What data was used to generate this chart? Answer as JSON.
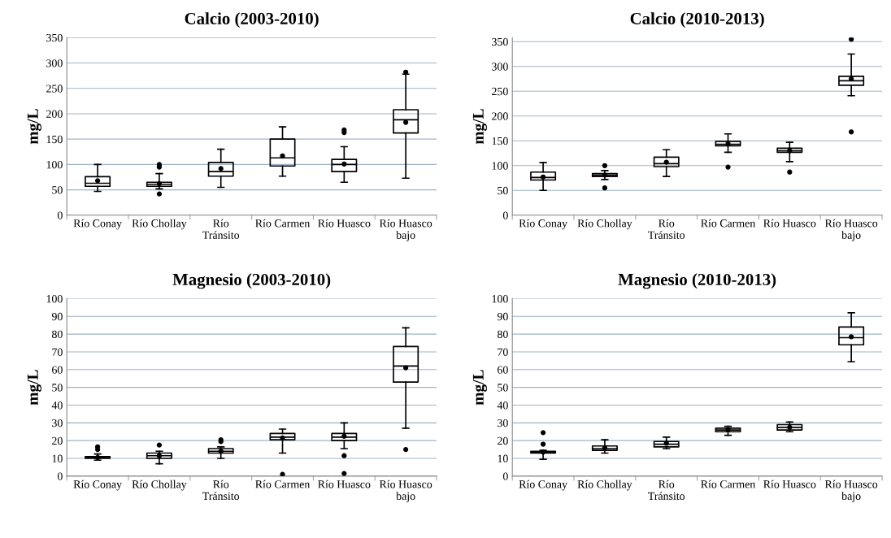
{
  "chart_data": [
    {
      "type": "box",
      "title": "Calcio (2003-2010)",
      "ylabel": "mg/L",
      "categories": [
        "Río Conay",
        "Río Chollay",
        "Río\nTránsito",
        "Río Carmen",
        "Río Huasco",
        "Río Huasco\nbajo"
      ],
      "ylim": [
        0,
        350
      ],
      "yticks": [
        0,
        50,
        100,
        150,
        200,
        250,
        300,
        350
      ],
      "grid": "y",
      "boxes": [
        {
          "low": 47,
          "q1": 57,
          "median": 63,
          "q3": 76,
          "high": 100,
          "mean": 68
        },
        {
          "low": 52,
          "q1": 57,
          "median": 61,
          "q3": 65,
          "high": 82,
          "mean": 62,
          "outliers": [
            42,
            95,
            100
          ]
        },
        {
          "low": 55,
          "q1": 77,
          "median": 86,
          "q3": 104,
          "high": 130,
          "mean": 92
        },
        {
          "low": 77,
          "q1": 97,
          "median": 113,
          "q3": 150,
          "high": 174,
          "mean": 117
        },
        {
          "low": 65,
          "q1": 86,
          "median": 100,
          "q3": 110,
          "high": 135,
          "mean": 101,
          "outliers": [
            163,
            168
          ]
        },
        {
          "low": 73,
          "q1": 162,
          "median": 188,
          "q3": 208,
          "high": 278,
          "mean": 183,
          "outliers": [
            282
          ]
        }
      ]
    },
    {
      "type": "box",
      "title": "Calcio (2010-2013)",
      "ylabel": "mg/L",
      "categories": [
        "Río Conay",
        "Río Chollay",
        "Río\nTránsito",
        "Río Carmen",
        "Río Huasco",
        "Río Huasco\nbajo"
      ],
      "ylim": [
        0,
        358
      ],
      "yticks": [
        0,
        50,
        100,
        150,
        200,
        250,
        300,
        350
      ],
      "grid": "y",
      "boxes": [
        {
          "low": 50,
          "q1": 71,
          "median": 76,
          "q3": 87,
          "high": 106,
          "mean": 77
        },
        {
          "low": 72,
          "q1": 78,
          "median": 81,
          "q3": 84,
          "high": 90,
          "mean": 81,
          "outliers": [
            55,
            100
          ]
        },
        {
          "low": 78,
          "q1": 98,
          "median": 104,
          "q3": 117,
          "high": 132,
          "mean": 107
        },
        {
          "low": 127,
          "q1": 140,
          "median": 143,
          "q3": 149,
          "high": 164,
          "mean": 144,
          "outliers": [
            97
          ]
        },
        {
          "low": 108,
          "q1": 127,
          "median": 130,
          "q3": 135,
          "high": 147,
          "mean": 130,
          "outliers": [
            87
          ]
        },
        {
          "low": 241,
          "q1": 262,
          "median": 271,
          "q3": 280,
          "high": 325,
          "mean": 275,
          "outliers": [
            168,
            355
          ]
        }
      ]
    },
    {
      "type": "box",
      "title": "Magnesio (2003-2010)",
      "ylabel": "mg/L",
      "categories": [
        "Río Conay",
        "Río Chollay",
        "Río\nTránsito",
        "Río Carmen",
        "Río Huasco",
        "Río Huasco\nbajo"
      ],
      "ylim": [
        0,
        100
      ],
      "yticks": [
        0,
        10,
        20,
        30,
        40,
        50,
        60,
        70,
        80,
        90,
        100
      ],
      "grid": "y",
      "boxes": [
        {
          "low": 9,
          "q1": 10,
          "median": 10.5,
          "q3": 11,
          "high": 12.5,
          "mean": 10.5,
          "outliers": [
            15,
            16.5
          ]
        },
        {
          "low": 7,
          "q1": 10,
          "median": 11.5,
          "q3": 13,
          "high": 14,
          "mean": 11.5,
          "outliers": [
            17.5
          ]
        },
        {
          "low": 10,
          "q1": 13,
          "median": 14,
          "q3": 15.5,
          "high": 16.5,
          "mean": 14,
          "outliers": [
            19.5,
            20.5
          ]
        },
        {
          "low": 13,
          "q1": 20.5,
          "median": 22,
          "q3": 24,
          "high": 26.5,
          "mean": 21.5,
          "outliers": [
            1
          ]
        },
        {
          "low": 15.5,
          "q1": 20,
          "median": 22,
          "q3": 24,
          "high": 30,
          "mean": 22.5,
          "outliers": [
            1.5,
            11.5
          ]
        },
        {
          "low": 27,
          "q1": 53,
          "median": 62,
          "q3": 73,
          "high": 83.5,
          "mean": 61,
          "outliers": [
            15
          ]
        }
      ]
    },
    {
      "type": "box",
      "title": "Magnesio (2010-2013)",
      "ylabel": "mg/L",
      "categories": [
        "Río Conay",
        "Río Chollay",
        "Río\nTránsito",
        "Río Carmen",
        "Río Huasco",
        "Río Huasco\nbajo"
      ],
      "ylim": [
        0,
        100
      ],
      "yticks": [
        0,
        10,
        20,
        30,
        40,
        50,
        60,
        70,
        80,
        90,
        100
      ],
      "grid": "y",
      "boxes": [
        {
          "low": 9.5,
          "q1": 13,
          "median": 13.5,
          "q3": 14,
          "high": 14.5,
          "mean": 13.5,
          "outliers": [
            18,
            24.5
          ]
        },
        {
          "low": 13,
          "q1": 14.5,
          "median": 15.5,
          "q3": 17,
          "high": 20.5,
          "mean": 16
        },
        {
          "low": 15.5,
          "q1": 16.5,
          "median": 18,
          "q3": 19.5,
          "high": 22,
          "mean": 18.5
        },
        {
          "low": 23,
          "q1": 25,
          "median": 26,
          "q3": 27,
          "high": 28,
          "mean": 26
        },
        {
          "low": 25,
          "q1": 26,
          "median": 27.5,
          "q3": 29,
          "high": 30.5,
          "mean": 27.5
        },
        {
          "low": 64.5,
          "q1": 74,
          "median": 78,
          "q3": 84,
          "high": 92,
          "mean": 78.5
        }
      ]
    }
  ]
}
